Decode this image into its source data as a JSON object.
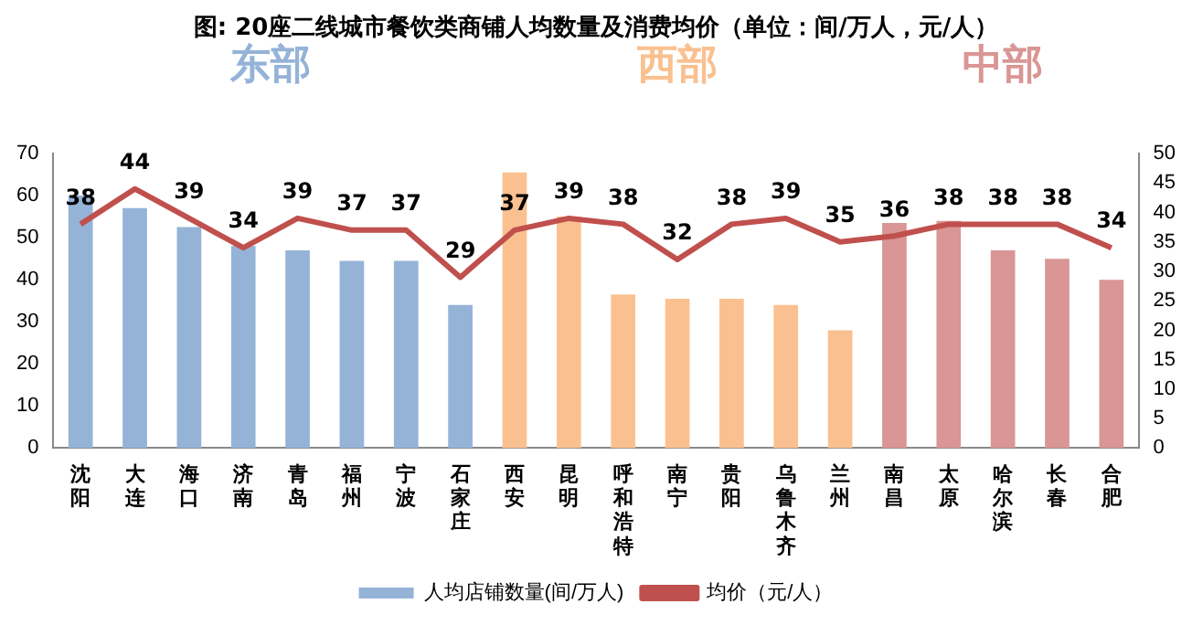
{
  "chart_data": {
    "type": "bar",
    "title": "图: 20座二线城市餐饮类商铺人均数量及消费均价（单位：间/万人，元/人）",
    "categories": [
      "沈阳",
      "大连",
      "海口",
      "济南",
      "青岛",
      "福州",
      "宁波",
      "石家庄",
      "西安",
      "昆明",
      "呼和浩特",
      "南宁",
      "贵阳",
      "乌鲁木齐",
      "兰州",
      "南昌",
      "太原",
      "哈尔滨",
      "长春",
      "合肥"
    ],
    "series": [
      {
        "name": "人均店铺数量(间/万人)",
        "color": "#95b3d7",
        "colors": [
          "#95b3d7",
          "#95b3d7",
          "#95b3d7",
          "#95b3d7",
          "#95b3d7",
          "#95b3d7",
          "#95b3d7",
          "#95b3d7",
          "#fac090",
          "#fac090",
          "#fac090",
          "#fac090",
          "#fac090",
          "#fac090",
          "#fac090",
          "#d99694",
          "#d99694",
          "#d99694",
          "#d99694",
          "#d99694"
        ],
        "values": [
          60,
          57,
          52.5,
          48,
          47,
          44.5,
          44.5,
          34,
          65.5,
          55,
          36.5,
          35.5,
          35.5,
          34,
          28,
          53.5,
          54,
          47,
          45,
          40
        ]
      },
      {
        "name": "均价（元/人）",
        "type": "line",
        "axis": "y2",
        "color": "#c0504d",
        "values": [
          38,
          44,
          39,
          34,
          39,
          37,
          37,
          29,
          37,
          39,
          38,
          32,
          38,
          39,
          35,
          36,
          38,
          38,
          38,
          34
        ],
        "value_labels": [
          "38",
          "44",
          "39",
          "34",
          "39",
          "37",
          "37",
          "29",
          "37",
          "39",
          "38",
          "32",
          "38",
          "39",
          "35",
          "36",
          "38",
          "38",
          "38",
          "34"
        ]
      }
    ],
    "annotations": [
      "东部",
      "西部",
      "中部"
    ],
    "ylim": [
      0,
      70
    ],
    "yticks": [
      0,
      10,
      20,
      30,
      40,
      50,
      60,
      70
    ],
    "y2lim": [
      0,
      50
    ],
    "y2ticks": [
      0,
      5,
      10,
      15,
      20,
      25,
      30,
      35,
      40,
      45,
      50
    ],
    "grid": false,
    "legend": "bottom",
    "marker": "none",
    "line_style": "solid"
  }
}
